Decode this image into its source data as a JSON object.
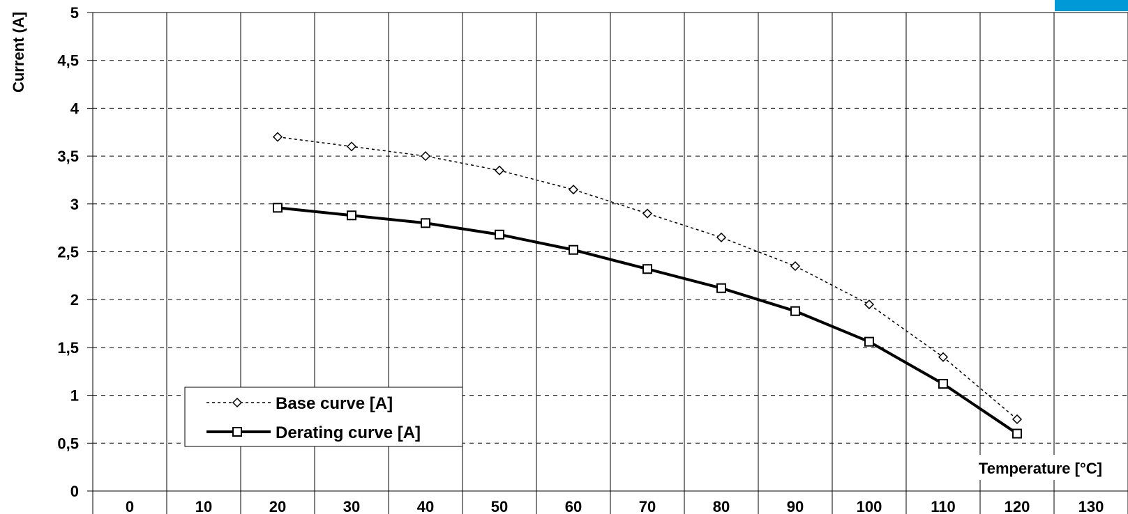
{
  "chart_data": {
    "type": "line",
    "title": "",
    "xlabel": "Temperature [°C]",
    "ylabel": "Current (A]",
    "x_ticks": [
      "0",
      "10",
      "20",
      "30",
      "40",
      "50",
      "60",
      "70",
      "80",
      "90",
      "100",
      "110",
      "120",
      "130"
    ],
    "y_ticks": [
      "0",
      "0,5",
      "1",
      "1,5",
      "2",
      "2,5",
      "3",
      "3,5",
      "4",
      "4,5",
      "5"
    ],
    "xlim": [
      -5,
      135
    ],
    "ylim": [
      0,
      5
    ],
    "grid": true,
    "legend_position": "bottom-left",
    "series": [
      {
        "name": "Base curve [A]",
        "style": "dotted",
        "marker": "diamond",
        "x": [
          20,
          30,
          40,
          50,
          60,
          70,
          80,
          90,
          100,
          110,
          120
        ],
        "values": [
          3.7,
          3.6,
          3.5,
          3.35,
          3.15,
          2.9,
          2.65,
          2.35,
          1.95,
          1.4,
          0.75
        ]
      },
      {
        "name": "Derating curve [A]",
        "style": "solid",
        "marker": "square",
        "x": [
          20,
          30,
          40,
          50,
          60,
          70,
          80,
          90,
          100,
          110,
          120
        ],
        "values": [
          2.96,
          2.88,
          2.8,
          2.68,
          2.52,
          2.32,
          2.12,
          1.88,
          1.56,
          1.12,
          0.6
        ]
      }
    ]
  },
  "colors": {
    "corner_accent": "#0099d8",
    "line": "#000000",
    "background": "#ffffff"
  }
}
